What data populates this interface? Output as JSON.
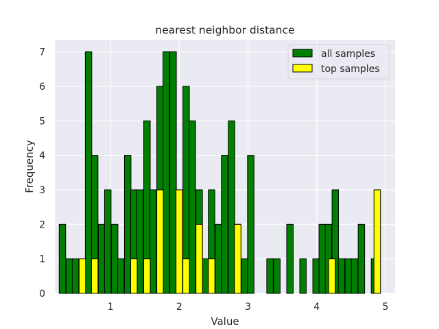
{
  "chart_data": {
    "type": "bar",
    "title": "nearest neighbor distance",
    "xlabel": "Value",
    "ylabel": "Frequency",
    "xlim": [
      0.19,
      5.14
    ],
    "ylim": [
      0,
      7.35
    ],
    "xticks": [
      1,
      2,
      3,
      4,
      5
    ],
    "yticks": [
      0,
      1,
      2,
      3,
      4,
      5,
      6,
      7
    ],
    "grid": true,
    "legend_position": "top-right",
    "bin_width": 0.0944,
    "series": [
      {
        "name": "all samples",
        "color": "#008000",
        "bins": [
          {
            "x": 0.3,
            "count": 2
          },
          {
            "x": 0.4,
            "count": 1
          },
          {
            "x": 0.49,
            "count": 1
          },
          {
            "x": 0.68,
            "count": 7
          },
          {
            "x": 0.77,
            "count": 4
          },
          {
            "x": 0.87,
            "count": 2
          },
          {
            "x": 0.96,
            "count": 3
          },
          {
            "x": 1.06,
            "count": 2
          },
          {
            "x": 1.15,
            "count": 1
          },
          {
            "x": 1.25,
            "count": 4
          },
          {
            "x": 1.34,
            "count": 3
          },
          {
            "x": 1.43,
            "count": 3
          },
          {
            "x": 1.53,
            "count": 5
          },
          {
            "x": 1.62,
            "count": 3
          },
          {
            "x": 1.72,
            "count": 6
          },
          {
            "x": 1.81,
            "count": 7
          },
          {
            "x": 1.91,
            "count": 7
          },
          {
            "x": 2.0,
            "count": 3
          },
          {
            "x": 2.1,
            "count": 6
          },
          {
            "x": 2.19,
            "count": 5
          },
          {
            "x": 2.29,
            "count": 3
          },
          {
            "x": 2.38,
            "count": 1
          },
          {
            "x": 2.47,
            "count": 3
          },
          {
            "x": 2.57,
            "count": 2
          },
          {
            "x": 2.66,
            "count": 4
          },
          {
            "x": 2.76,
            "count": 5
          },
          {
            "x": 2.85,
            "count": 2
          },
          {
            "x": 2.95,
            "count": 1
          },
          {
            "x": 3.04,
            "count": 4
          },
          {
            "x": 3.32,
            "count": 1
          },
          {
            "x": 3.42,
            "count": 1
          },
          {
            "x": 3.61,
            "count": 2
          },
          {
            "x": 3.8,
            "count": 1
          },
          {
            "x": 3.99,
            "count": 1
          },
          {
            "x": 4.08,
            "count": 2
          },
          {
            "x": 4.17,
            "count": 2
          },
          {
            "x": 4.27,
            "count": 3
          },
          {
            "x": 4.36,
            "count": 1
          },
          {
            "x": 4.46,
            "count": 1
          },
          {
            "x": 4.55,
            "count": 1
          },
          {
            "x": 4.65,
            "count": 2
          },
          {
            "x": 4.84,
            "count": 1
          }
        ]
      },
      {
        "name": "top samples",
        "color": "#ffff00",
        "bins": [
          {
            "x": 0.59,
            "count": 1
          },
          {
            "x": 0.77,
            "count": 1
          },
          {
            "x": 1.34,
            "count": 1
          },
          {
            "x": 1.53,
            "count": 1
          },
          {
            "x": 1.72,
            "count": 3
          },
          {
            "x": 2.0,
            "count": 3
          },
          {
            "x": 2.1,
            "count": 1
          },
          {
            "x": 2.29,
            "count": 2
          },
          {
            "x": 2.47,
            "count": 1
          },
          {
            "x": 2.85,
            "count": 2
          },
          {
            "x": 4.22,
            "count": 1
          },
          {
            "x": 4.88,
            "count": 3
          }
        ]
      }
    ]
  }
}
